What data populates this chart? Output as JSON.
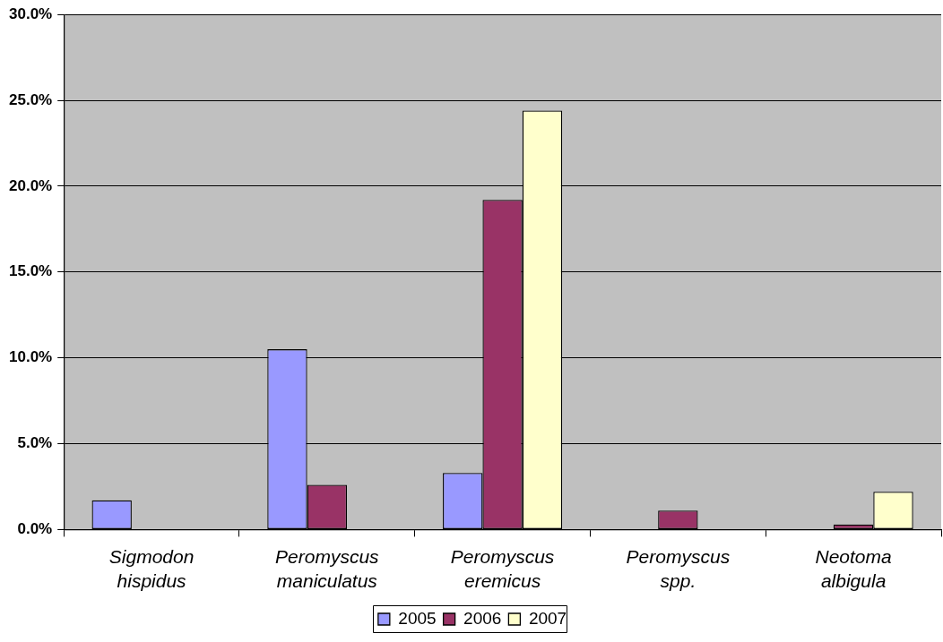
{
  "chart_data": {
    "type": "bar",
    "categories": [
      "Sigmodon hispidus",
      "Peromyscus maniculatus",
      "Peromyscus eremicus",
      "Peromyscus spp.",
      "Neotoma albigula"
    ],
    "series": [
      {
        "name": "2005",
        "color": "#9999ff",
        "values": [
          1.7,
          10.5,
          3.3,
          0,
          0
        ]
      },
      {
        "name": "2006",
        "color": "#993366",
        "values": [
          0,
          2.6,
          19.2,
          1.1,
          0.3
        ]
      },
      {
        "name": "2007",
        "color": "#ffffcc",
        "values": [
          0,
          0,
          24.4,
          0,
          2.2
        ]
      }
    ],
    "ylim": [
      0,
      30
    ],
    "yticks": [
      {
        "value": 0,
        "label": "0.0%"
      },
      {
        "value": 5,
        "label": "5.0%"
      },
      {
        "value": 10,
        "label": "10.0%"
      },
      {
        "value": 15,
        "label": "15.0%"
      },
      {
        "value": 20,
        "label": "20.0%"
      },
      {
        "value": 25,
        "label": "25.0%"
      },
      {
        "value": 30,
        "label": "30.0%"
      }
    ],
    "grid": "y",
    "legend": "bottom"
  }
}
